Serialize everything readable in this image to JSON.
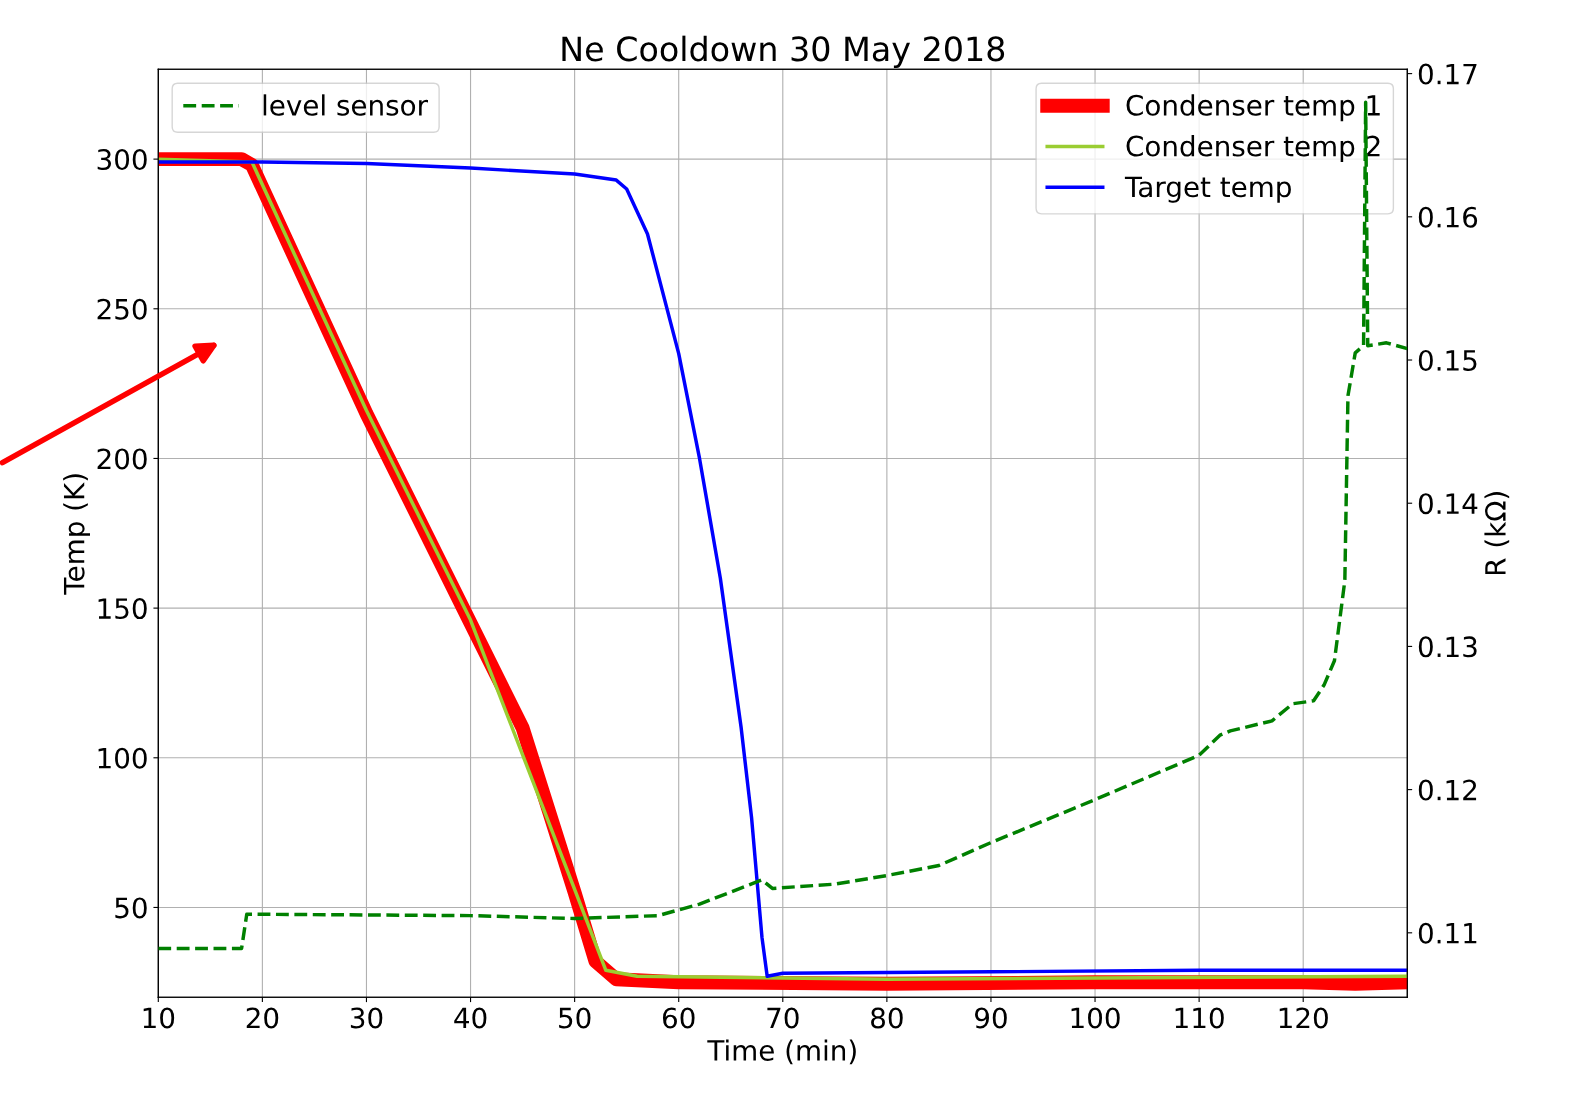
{
  "chart_data": {
    "type": "line",
    "title": "Ne Cooldown 30 May 2018",
    "xlabel": "Time (min)",
    "ylabel": "Temp (K)",
    "y2label": "R (kΩ)",
    "xlim": [
      10,
      130
    ],
    "xticks": [
      10,
      20,
      30,
      40,
      50,
      60,
      70,
      80,
      90,
      100,
      110,
      120
    ],
    "ylim": [
      20,
      330
    ],
    "yticks": [
      50,
      100,
      150,
      200,
      250,
      300
    ],
    "y2lim": [
      0.1055,
      0.1703
    ],
    "y2ticks": [
      0.11,
      0.12,
      0.13,
      0.14,
      0.15,
      0.16,
      0.17
    ],
    "grid": true,
    "legend": "top right",
    "series": [
      {
        "name": "Condenser temp 1",
        "color": "#ff0000",
        "marker": "circle",
        "x": [
          10,
          18,
          19,
          30,
          40,
          45,
          50,
          52,
          54,
          60,
          80,
          100,
          120,
          125,
          130
        ],
        "values": [
          300,
          300,
          298,
          215,
          145,
          110,
          55,
          32,
          26,
          25,
          24.5,
          25,
          25,
          24.5,
          25
        ]
      },
      {
        "name": "Condenser temp 2",
        "color": "#9acd32",
        "x": [
          10,
          19,
          30,
          40,
          50,
          53,
          56,
          80,
          130
        ],
        "values": [
          300,
          299,
          216,
          146,
          56,
          29,
          27,
          26,
          27
        ]
      },
      {
        "name": "Target temp",
        "color": "#0000ff",
        "x": [
          10,
          20,
          30,
          40,
          50,
          54,
          55,
          57,
          60,
          62,
          64,
          66,
          67,
          68,
          68.5,
          70,
          90,
          110,
          130
        ],
        "values": [
          299,
          299,
          298.5,
          297,
          295,
          293,
          290,
          275,
          235,
          200,
          160,
          110,
          80,
          40,
          27,
          28,
          28.5,
          29,
          29
        ]
      },
      {
        "name": "level sensor",
        "color": "#008000",
        "axis": "y2",
        "line_style": "dashed",
        "x": [
          10,
          18,
          18.5,
          40,
          50,
          58,
          62,
          68,
          69,
          75,
          80,
          85,
          90,
          100,
          110,
          112,
          113,
          117,
          119,
          121,
          122,
          123,
          124,
          124.3,
          125,
          125.8,
          126,
          126.2,
          128,
          130
        ],
        "values": [
          0.1089,
          0.1089,
          0.1113,
          0.1112,
          0.111,
          0.1112,
          0.112,
          0.1137,
          0.1131,
          0.1134,
          0.114,
          0.1147,
          0.1163,
          0.1193,
          0.1224,
          0.1238,
          0.1241,
          0.1248,
          0.126,
          0.1262,
          0.1273,
          0.129,
          0.1346,
          0.1475,
          0.1505,
          0.151,
          0.168,
          0.151,
          0.1512,
          0.1508
        ]
      }
    ]
  }
}
